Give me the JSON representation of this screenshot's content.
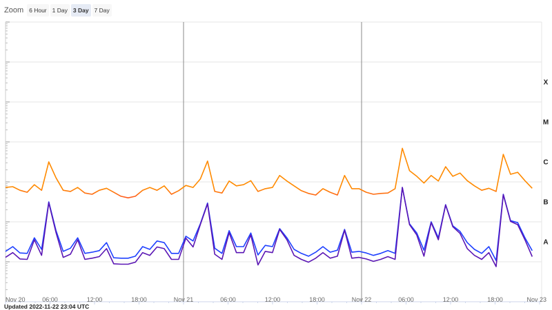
{
  "zoom": {
    "label": "Zoom",
    "buttons": [
      "6 Hour",
      "1 Day",
      "3 Day",
      "7 Day"
    ],
    "active": "3 Day"
  },
  "updated": "Updated 2022-11-22 23:04 UTC",
  "colors": {
    "long": "#ff8a00",
    "long_low": "#ff5a1e",
    "short_a": "#1e40ff",
    "short_b": "#5a16b4",
    "grid": "#e6e6e6",
    "day_line": "#888888"
  },
  "chart_data": {
    "type": "line",
    "title": "",
    "xlabel": "",
    "ylabel": "",
    "y_scale": "log10 flux (W/m²)",
    "ylim": [
      -9,
      -2
    ],
    "xlim_hours": [
      0,
      72
    ],
    "x_start": "Nov 20 00:00 UTC",
    "x_span_hours_of_data": 71,
    "x_tick_labels": [
      "Nov 20",
      "06:00",
      "12:00",
      "18:00",
      "Nov 21",
      "06:00",
      "12:00",
      "18:00",
      "Nov 22",
      "06:00",
      "12:00",
      "18:00",
      "Nov 23"
    ],
    "class_labels": [
      {
        "label": "X",
        "log_low": -4
      },
      {
        "label": "M",
        "log_low": -5
      },
      {
        "label": "C",
        "log_low": -6
      },
      {
        "label": "B",
        "log_low": -7
      },
      {
        "label": "A",
        "log_low": -8
      }
    ],
    "grid": true,
    "series": [
      {
        "name": "long",
        "values": [
          -6.14,
          -6.12,
          -6.21,
          -6.26,
          -6.07,
          -6.21,
          -5.5,
          -5.9,
          -6.21,
          -6.24,
          -6.14,
          -6.28,
          -6.31,
          -6.21,
          -6.16,
          -6.26,
          -6.36,
          -6.4,
          -6.36,
          -6.21,
          -6.14,
          -6.21,
          -6.1,
          -6.31,
          -6.22,
          -6.09,
          -6.14,
          -5.93,
          -5.48,
          -6.24,
          -6.28,
          -5.98,
          -6.1,
          -6.07,
          -5.97,
          -6.24,
          -6.17,
          -6.14,
          -5.84,
          -5.98,
          -6.1,
          -6.22,
          -6.29,
          -6.33,
          -6.17,
          -6.26,
          -6.33,
          -5.84,
          -6.17,
          -6.17,
          -6.26,
          -6.31,
          -6.29,
          -6.28,
          -6.17,
          -5.16,
          -5.72,
          -5.86,
          -6.03,
          -5.84,
          -5.98,
          -5.62,
          -5.86,
          -5.78,
          -5.97,
          -6.1,
          -6.21,
          -6.16,
          -6.24,
          -5.31,
          -5.81,
          -5.76,
          -5.97,
          -6.16
        ]
      },
      {
        "name": "short_a",
        "values": [
          -7.74,
          -7.62,
          -7.78,
          -7.79,
          -7.4,
          -7.69,
          -6.5,
          -7.22,
          -7.74,
          -7.66,
          -7.4,
          -7.79,
          -7.76,
          -7.72,
          -7.52,
          -7.9,
          -7.91,
          -7.91,
          -7.86,
          -7.62,
          -7.69,
          -7.48,
          -7.52,
          -7.79,
          -7.79,
          -7.36,
          -7.48,
          -7.05,
          -6.53,
          -7.66,
          -7.79,
          -7.22,
          -7.62,
          -7.62,
          -7.28,
          -7.83,
          -7.59,
          -7.62,
          -7.17,
          -7.4,
          -7.69,
          -7.79,
          -7.86,
          -7.76,
          -7.62,
          -7.76,
          -7.71,
          -7.19,
          -7.76,
          -7.74,
          -7.78,
          -7.84,
          -7.79,
          -7.72,
          -7.79,
          -6.14,
          -7.05,
          -7.28,
          -7.71,
          -7.0,
          -7.4,
          -6.57,
          -7.1,
          -7.24,
          -7.52,
          -7.69,
          -7.79,
          -7.62,
          -7.97,
          -6.31,
          -6.97,
          -7.02,
          -7.4,
          -7.72
        ]
      },
      {
        "name": "short_b",
        "values": [
          -7.89,
          -7.77,
          -7.93,
          -7.94,
          -7.45,
          -7.84,
          -6.52,
          -7.27,
          -7.89,
          -7.81,
          -7.45,
          -7.94,
          -7.91,
          -7.87,
          -7.67,
          -8.05,
          -8.06,
          -8.06,
          -8.01,
          -7.77,
          -7.84,
          -7.63,
          -7.67,
          -7.94,
          -7.94,
          -7.41,
          -7.63,
          -7.07,
          -6.55,
          -7.81,
          -7.94,
          -7.27,
          -7.77,
          -7.77,
          -7.33,
          -8.08,
          -7.74,
          -7.77,
          -7.19,
          -7.45,
          -7.84,
          -7.94,
          -8.01,
          -7.91,
          -7.77,
          -7.91,
          -7.86,
          -7.21,
          -7.91,
          -7.89,
          -7.93,
          -7.99,
          -7.94,
          -7.87,
          -7.94,
          -6.14,
          -7.07,
          -7.33,
          -7.86,
          -7.02,
          -7.45,
          -6.58,
          -7.12,
          -7.29,
          -7.67,
          -7.84,
          -7.94,
          -7.77,
          -8.12,
          -6.32,
          -6.99,
          -7.07,
          -7.45,
          -7.87
        ]
      }
    ]
  }
}
